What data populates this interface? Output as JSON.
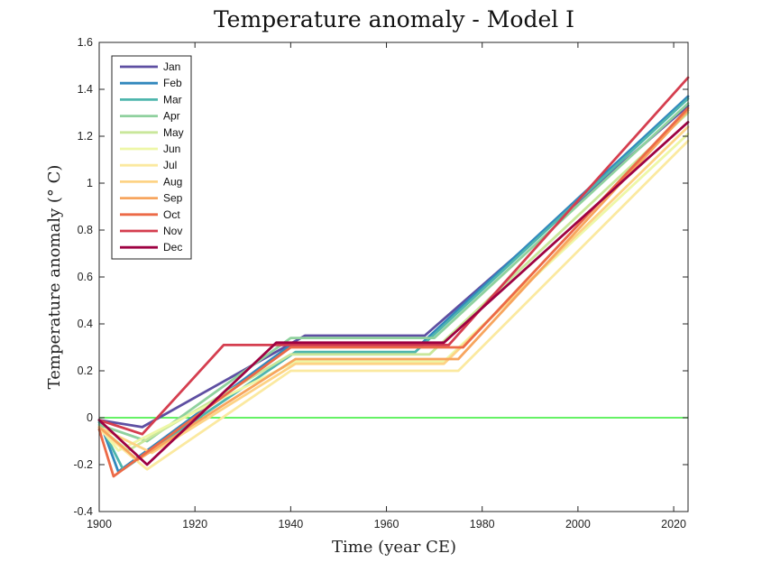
{
  "chart_data": {
    "type": "line",
    "title": "Temperature anomaly - Model I",
    "xlabel": "Time (year CE)",
    "ylabel": "Temperature anomaly (° C)",
    "xlim": [
      1900,
      2023
    ],
    "ylim": [
      -0.4,
      1.6
    ],
    "xticks": [
      1900,
      1920,
      1940,
      1960,
      1980,
      2000,
      2020
    ],
    "yticks": [
      -0.4,
      -0.2,
      0,
      0.2,
      0.4,
      0.6,
      0.8,
      1,
      1.2,
      1.4,
      1.6
    ],
    "ytick_labels": [
      "-0.4",
      "-0.2",
      "0",
      "0.2",
      "0.4",
      "0.6",
      "0.8",
      "1",
      "1.2",
      "1.4",
      "1.6"
    ],
    "grid": false,
    "legend_position": "top-left",
    "reference_line": {
      "y": 0,
      "color": "#33ee33"
    },
    "series": [
      {
        "name": "Jan",
        "color": "#5e4fa2",
        "x": [
          1900,
          1909,
          1943,
          1968,
          2023
        ],
        "y": [
          -0.01,
          -0.04,
          0.35,
          0.35,
          1.33
        ]
      },
      {
        "name": "Feb",
        "color": "#3288bd",
        "x": [
          1900,
          1904,
          1940,
          1967,
          2023
        ],
        "y": [
          -0.01,
          -0.23,
          0.31,
          0.31,
          1.37
        ]
      },
      {
        "name": "Mar",
        "color": "#4fb6ad",
        "x": [
          1900,
          1905,
          1941,
          1966,
          2023
        ],
        "y": [
          -0.02,
          -0.22,
          0.28,
          0.28,
          1.36
        ]
      },
      {
        "name": "Apr",
        "color": "#8fd19e",
        "x": [
          1900,
          1910,
          1940,
          1970,
          2023
        ],
        "y": [
          -0.03,
          -0.1,
          0.34,
          0.34,
          1.34
        ]
      },
      {
        "name": "May",
        "color": "#c9e79b",
        "x": [
          1900,
          1906,
          1940,
          1969,
          2023
        ],
        "y": [
          -0.04,
          -0.14,
          0.27,
          0.27,
          1.3
        ]
      },
      {
        "name": "Jun",
        "color": "#eef7a7",
        "x": [
          1900,
          1904,
          1941,
          1972,
          2023
        ],
        "y": [
          -0.04,
          -0.14,
          0.24,
          0.24,
          1.21
        ]
      },
      {
        "name": "Jul",
        "color": "#fbe9a0",
        "x": [
          1900,
          1910,
          1940,
          1975,
          2023
        ],
        "y": [
          -0.05,
          -0.22,
          0.2,
          0.2,
          1.18
        ]
      },
      {
        "name": "Aug",
        "color": "#fdd385",
        "x": [
          1900,
          1911,
          1941,
          1972,
          2023
        ],
        "y": [
          -0.04,
          -0.15,
          0.23,
          0.23,
          1.24
        ]
      },
      {
        "name": "Sep",
        "color": "#f7a55e",
        "x": [
          1900,
          1908,
          1941,
          1975,
          2023
        ],
        "y": [
          -0.04,
          -0.18,
          0.25,
          0.25,
          1.31
        ]
      },
      {
        "name": "Oct",
        "color": "#ec6a47",
        "x": [
          1900,
          1903,
          1940,
          1976,
          2023
        ],
        "y": [
          -0.05,
          -0.25,
          0.3,
          0.3,
          1.32
        ]
      },
      {
        "name": "Nov",
        "color": "#d53e4f",
        "x": [
          1900,
          1909,
          1926,
          1973,
          2023
        ],
        "y": [
          -0.01,
          -0.07,
          0.31,
          0.31,
          1.45
        ]
      },
      {
        "name": "Dec",
        "color": "#9e0142",
        "x": [
          1900,
          1910,
          1937,
          1972,
          2023
        ],
        "y": [
          -0.01,
          -0.2,
          0.32,
          0.32,
          1.26
        ]
      }
    ]
  }
}
